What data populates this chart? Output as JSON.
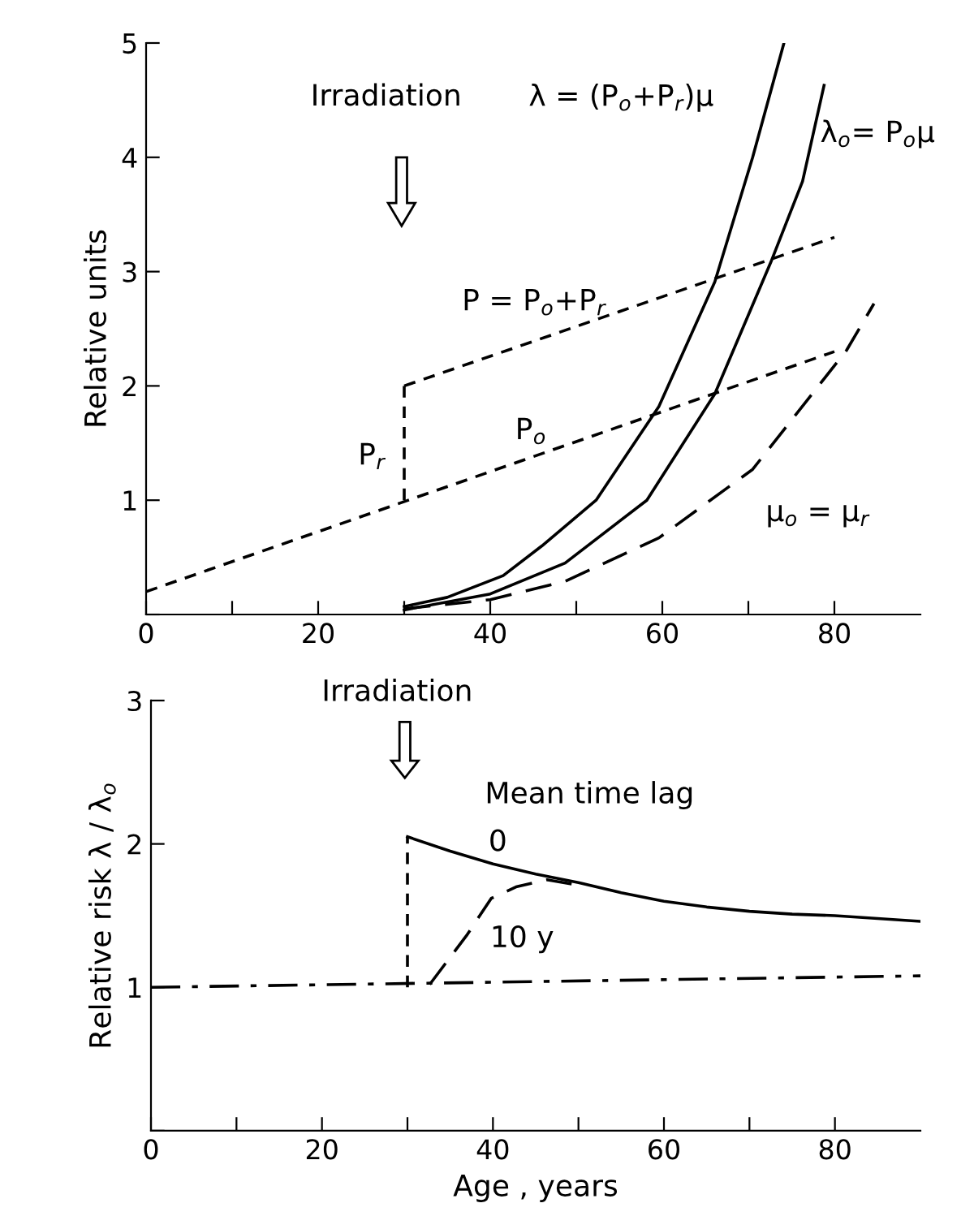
{
  "chart_data": [
    {
      "type": "line",
      "ylabel": "Relative units",
      "xlim": [
        0,
        90
      ],
      "ylim": [
        0,
        5
      ],
      "xticks": [
        0,
        {
          "value": 10,
          "label": null
        },
        20,
        {
          "value": 30,
          "label": null
        },
        40,
        {
          "value": 50,
          "label": null
        },
        60,
        {
          "value": 70,
          "label": null
        },
        80
      ],
      "yticks": [
        {
          "value": 0,
          "label": null
        },
        1,
        2,
        3,
        4,
        5
      ],
      "series": [
        {
          "name": "λ = (P$_{o}$+P$_{r}$)μ",
          "color": "#000000",
          "line_style": "solid",
          "x": [
            30,
            35,
            41.5,
            46,
            52.3,
            59.6,
            66.1,
            70.5,
            74.1
          ],
          "values": [
            0.07,
            0.15,
            0.34,
            0.6,
            1.0,
            1.82,
            2.91,
            4.0,
            4.99
          ]
        },
        {
          "name": "λ$_{o}$= P$_{o}$μ",
          "color": "#000000",
          "line_style": "solid",
          "x": [
            30,
            40,
            48.7,
            58.2,
            66.1,
            72.6,
            76.3,
            78.8
          ],
          "values": [
            0.04,
            0.18,
            0.45,
            1.0,
            1.93,
            3.08,
            3.79,
            4.63
          ]
        },
        {
          "name": "μ$_{o}$ = μ$_{r}$",
          "color": "#000000",
          "line_style": "longdashed",
          "x": [
            30,
            40,
            48.7,
            59.6,
            70.5,
            81.4,
            84.6
          ],
          "values": [
            0.05,
            0.13,
            0.29,
            0.67,
            1.27,
            2.31,
            2.72
          ]
        },
        {
          "name": "P$_{o}$",
          "color": "#000000",
          "line_style": "dashed",
          "x": [
            0,
            80
          ],
          "values": [
            0.2,
            2.3
          ]
        },
        {
          "name": "P$_{r}$",
          "color": "#000000",
          "line_style": "dashed",
          "x": [
            30,
            30
          ],
          "values": [
            1.0,
            2.0
          ]
        },
        {
          "name": "P = P$_{o}$+P$_{r}$",
          "color": "#000000",
          "line_style": "dashed",
          "x": [
            30,
            80
          ],
          "values": [
            2.0,
            3.3
          ]
        }
      ],
      "annotations": [
        "Irradiation"
      ]
    },
    {
      "type": "line",
      "xlabel": "Age , years",
      "ylabel": "Relative risk λ / λ$_{o}$",
      "legend_title": "Mean time lag",
      "xlim": [
        0,
        90
      ],
      "ylim": [
        0,
        3
      ],
      "xticks": [
        0,
        {
          "value": 10,
          "label": null
        },
        20,
        {
          "value": 30,
          "label": null
        },
        40,
        {
          "value": 50,
          "label": null
        },
        60,
        {
          "value": 70,
          "label": null
        },
        80
      ],
      "yticks": [
        {
          "value": 0,
          "label": null
        },
        1,
        2,
        3
      ],
      "series": [
        {
          "color": "#000000",
          "line_style": "dashed",
          "x": [
            30,
            30
          ],
          "values": [
            1.0,
            2.05
          ]
        },
        {
          "name": "0",
          "color": "#000000",
          "line_style": "solid",
          "x": [
            30,
            35,
            40,
            45,
            50,
            55,
            60,
            65,
            70,
            75,
            80,
            85,
            90
          ],
          "values": [
            2.05,
            1.95,
            1.86,
            1.79,
            1.73,
            1.66,
            1.6,
            1.56,
            1.53,
            1.51,
            1.5,
            1.48,
            1.46
          ]
        },
        {
          "name": "10 y",
          "color": "#000000",
          "line_style": "longdashed",
          "x": [
            32.6,
            36.9,
            39.8,
            42.7,
            46.3,
            49.2
          ],
          "values": [
            1.02,
            1.36,
            1.62,
            1.7,
            1.75,
            1.72
          ]
        },
        {
          "color": "#000000",
          "line_style": "dashdot",
          "x": [
            0,
            90
          ],
          "values": [
            1.0,
            1.08
          ]
        }
      ],
      "annotations": [
        "Irradiation"
      ]
    }
  ]
}
